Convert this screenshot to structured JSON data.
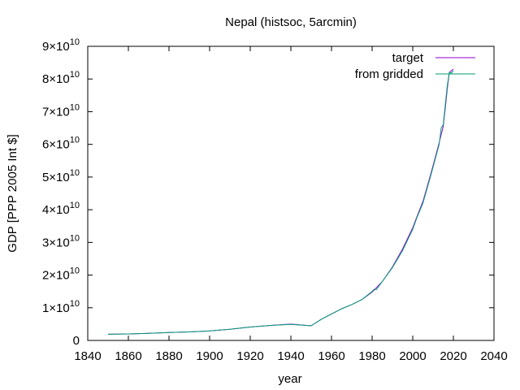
{
  "chart_data": {
    "type": "line",
    "title": "Nepal (histsoc, 5arcmin)",
    "xlabel": "year",
    "ylabel": "GDP [PPP 2005 Int $]",
    "xlim": [
      1840,
      2040
    ],
    "ylim": [
      0,
      90000000000
    ],
    "grid": false,
    "legend_position": "top-right",
    "x_ticks": [
      1840,
      1860,
      1880,
      1900,
      1920,
      1940,
      1960,
      1980,
      2000,
      2020,
      2040
    ],
    "x_tick_labels": [
      "1840",
      "1860",
      "1880",
      "1900",
      "1920",
      "1940",
      "1960",
      "1980",
      "2000",
      "2020",
      "2040"
    ],
    "y_ticks": [
      {
        "value": 0,
        "mantissa": "0",
        "exponent": ""
      },
      {
        "value": 10000000000,
        "mantissa": "1×10",
        "exponent": "10"
      },
      {
        "value": 20000000000,
        "mantissa": "2×10",
        "exponent": "10"
      },
      {
        "value": 30000000000,
        "mantissa": "3×10",
        "exponent": "10"
      },
      {
        "value": 40000000000,
        "mantissa": "4×10",
        "exponent": "10"
      },
      {
        "value": 50000000000,
        "mantissa": "5×10",
        "exponent": "10"
      },
      {
        "value": 60000000000,
        "mantissa": "6×10",
        "exponent": "10"
      },
      {
        "value": 70000000000,
        "mantissa": "7×10",
        "exponent": "10"
      },
      {
        "value": 80000000000,
        "mantissa": "8×10",
        "exponent": "10"
      },
      {
        "value": 90000000000,
        "mantissa": "9×10",
        "exponent": "10"
      }
    ],
    "series": [
      {
        "name": "target",
        "color": "#9400d3",
        "x": [
          1850,
          1860,
          1870,
          1880,
          1890,
          1900,
          1910,
          1920,
          1930,
          1940,
          1950,
          1955,
          1960,
          1965,
          1970,
          1975,
          1980,
          1985,
          1990,
          1995,
          2000,
          2002,
          2005,
          2008,
          2010,
          2013,
          2015,
          2016,
          2017,
          2018,
          2019,
          2020
        ],
        "y": [
          1900000000,
          2000000000,
          2200000000,
          2400000000,
          2600000000,
          2900000000,
          3400000000,
          4100000000,
          4600000000,
          5000000000,
          4500000000,
          6500000000,
          8100000000,
          9700000000,
          11000000000,
          12500000000,
          14800000000,
          18000000000,
          22500000000,
          28000000000,
          34500000000,
          37800000000,
          42500000000,
          49000000000,
          53500000000,
          60500000000,
          65500000000,
          71000000000,
          77000000000,
          82000000000,
          82500000000,
          83000000000
        ]
      },
      {
        "name": "from gridded",
        "color": "#009e73",
        "x": [
          1850,
          1860,
          1870,
          1880,
          1890,
          1900,
          1910,
          1920,
          1930,
          1940,
          1950,
          1955,
          1960,
          1965,
          1970,
          1975,
          1980,
          1981,
          1982,
          1985,
          1990,
          1995,
          2000,
          2002,
          2005,
          2008,
          2010,
          2013,
          2014,
          2015,
          2016,
          2017,
          2018,
          2019,
          2020
        ],
        "y": [
          1900000000,
          2000000000,
          2200000000,
          2400000000,
          2600000000,
          2900000000,
          3400000000,
          4100000000,
          4600000000,
          4900000000,
          4500000000,
          6500000000,
          8100000000,
          9700000000,
          11000000000,
          12500000000,
          15000000000,
          15700000000,
          15500000000,
          18000000000,
          22300000000,
          27500000000,
          34000000000,
          37500000000,
          42000000000,
          48500000000,
          53000000000,
          60000000000,
          65000000000,
          66000000000,
          72000000000,
          78000000000,
          82000000000,
          81800000000,
          82500000000
        ]
      }
    ]
  }
}
